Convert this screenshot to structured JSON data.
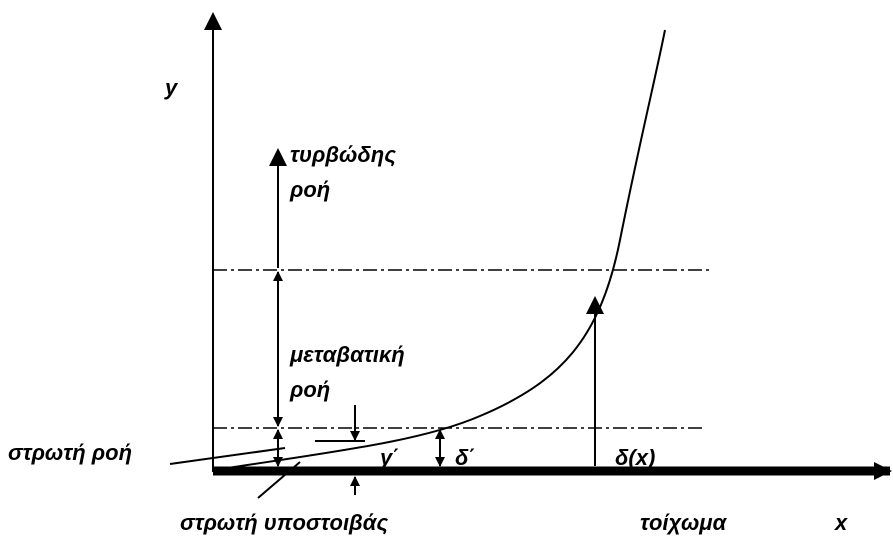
{
  "axis_labels": {
    "x": "x",
    "y": "y"
  },
  "regions": {
    "turbulent": [
      "τυρβώδης",
      "ροή"
    ],
    "transitional": [
      "μεταβατική",
      "ροή"
    ],
    "laminar": "στρωτή ροή",
    "sublayer": "στρωτή υποστοιβάς"
  },
  "dimensions": {
    "y_prime": "y΄",
    "delta_prime": "δ΄",
    "delta_x": "δ(x)"
  },
  "wall": "τοίχωμα"
}
